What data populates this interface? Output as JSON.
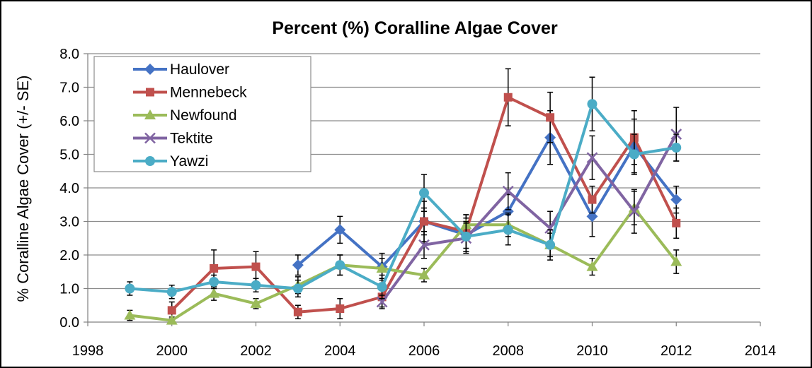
{
  "chart_data": {
    "type": "line",
    "title": "Percent (%) Coralline Algae Cover",
    "xlabel": "",
    "ylabel": "% Coralline Algae Cover (+/- SE)",
    "xlim": [
      1998,
      2014
    ],
    "ylim": [
      0,
      8
    ],
    "x_ticks": [
      "1998",
      "2000",
      "2002",
      "2004",
      "2006",
      "2008",
      "2010",
      "2012",
      "2014"
    ],
    "y_ticks": [
      "0.0",
      "1.0",
      "2.0",
      "3.0",
      "4.0",
      "5.0",
      "6.0",
      "7.0",
      "8.0"
    ],
    "grid": "horizontal",
    "legend_position": "top-left",
    "series": [
      {
        "name": "Haulover",
        "color": "#4472C4",
        "marker": "diamond",
        "x": [
          2003,
          2004,
          2005,
          2006,
          2007,
          2008,
          2009,
          2010,
          2011,
          2012
        ],
        "y": [
          1.7,
          2.75,
          1.65,
          3.0,
          2.6,
          3.3,
          5.5,
          3.15,
          5.25,
          3.65
        ],
        "err": [
          0.3,
          0.4,
          0.4,
          0.4,
          0.5,
          0.5,
          0.8,
          0.6,
          0.8,
          0.4
        ]
      },
      {
        "name": "Mennebeck",
        "color": "#C0504D",
        "marker": "square",
        "x": [
          2000,
          2001,
          2002,
          2003,
          2004,
          2005,
          2006,
          2007,
          2008,
          2009,
          2010,
          2011,
          2012
        ],
        "y": [
          0.35,
          1.6,
          1.65,
          0.3,
          0.4,
          0.75,
          3.0,
          2.7,
          6.7,
          6.1,
          3.65,
          5.5,
          2.95
        ],
        "err": [
          0.25,
          0.55,
          0.45,
          0.2,
          0.3,
          0.3,
          0.6,
          0.5,
          0.85,
          0.75,
          0.4,
          0.8,
          0.45
        ]
      },
      {
        "name": "Newfound",
        "color": "#9BBB59",
        "marker": "triangle",
        "x": [
          1999,
          2000,
          2001,
          2002,
          2003,
          2004,
          2005,
          2006,
          2007,
          2008,
          2009,
          2010,
          2011,
          2012
        ],
        "y": [
          0.2,
          0.05,
          0.85,
          0.55,
          1.1,
          1.7,
          1.6,
          1.4,
          2.9,
          2.9,
          2.3,
          1.65,
          3.4,
          1.8
        ],
        "err": [
          0.15,
          0.1,
          0.2,
          0.15,
          0.25,
          0.3,
          0.3,
          0.2,
          0.3,
          0.35,
          0.35,
          0.25,
          0.5,
          0.35
        ]
      },
      {
        "name": "Tektite",
        "color": "#8064A2",
        "marker": "x",
        "x": [
          2005,
          2006,
          2007,
          2008,
          2009,
          2010,
          2011,
          2012
        ],
        "y": [
          0.6,
          2.3,
          2.5,
          3.9,
          2.8,
          4.9,
          3.3,
          5.6
        ],
        "err": [
          0.2,
          0.4,
          0.45,
          0.55,
          0.5,
          0.65,
          0.65,
          0.8
        ]
      },
      {
        "name": "Yawzi",
        "color": "#4BACC6",
        "marker": "circle",
        "x": [
          1999,
          2000,
          2001,
          2002,
          2003,
          2004,
          2005,
          2006,
          2007,
          2008,
          2009,
          2010,
          2011,
          2012
        ],
        "y": [
          1.0,
          0.9,
          1.2,
          1.1,
          1.0,
          1.7,
          1.05,
          3.85,
          2.55,
          2.75,
          2.3,
          6.5,
          5.0,
          5.2
        ],
        "err": [
          0.2,
          0.2,
          0.2,
          0.2,
          0.25,
          0.3,
          0.35,
          0.55,
          0.45,
          0.45,
          0.45,
          0.8,
          0.6,
          0.4
        ]
      }
    ]
  }
}
